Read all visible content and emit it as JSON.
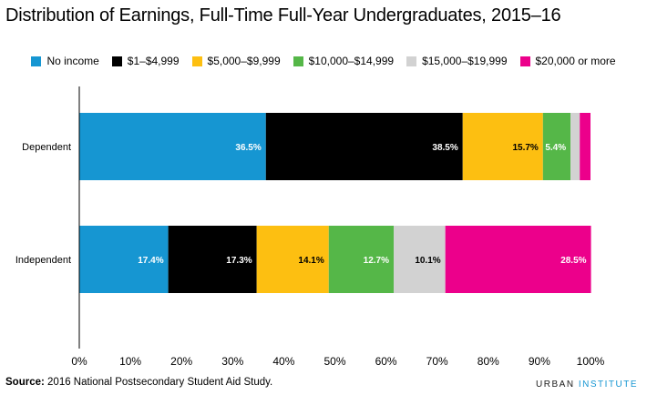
{
  "title": "Distribution of Earnings, Full-Time Full-Year Undergraduates, 2015–16",
  "source_label": "Source:",
  "source_text": "2016 National Postsecondary Student Aid Study.",
  "brand": {
    "word1": "URBAN",
    "word2": "INSTITUTE"
  },
  "chart_data": {
    "type": "bar",
    "orientation": "horizontal",
    "stacked": true,
    "title": "Distribution of Earnings, Full-Time Full-Year Undergraduates, 2015–16",
    "categories": [
      "Dependent",
      "Independent"
    ],
    "xlim": [
      0,
      100
    ],
    "x_ticks": [
      "0%",
      "10%",
      "20%",
      "30%",
      "40%",
      "50%",
      "60%",
      "70%",
      "80%",
      "90%",
      "100%"
    ],
    "legend_position": "top",
    "grid": false,
    "series": [
      {
        "name": "No income",
        "color": "#1696d2",
        "values": [
          36.5,
          17.4
        ],
        "labels": [
          "36.5%",
          "17.4%"
        ]
      },
      {
        "name": "$1–$4,999",
        "color": "#000000",
        "values": [
          38.5,
          17.3
        ],
        "labels": [
          "38.5%",
          "17.3%"
        ]
      },
      {
        "name": "$5,000–$9,999",
        "color": "#fdbf11",
        "values": [
          15.7,
          14.1
        ],
        "labels": [
          "15.7%",
          "14.1%"
        ]
      },
      {
        "name": "$10,000–$14,999",
        "color": "#55b748",
        "values": [
          5.4,
          12.7
        ],
        "labels": [
          "5.4%",
          "12.7%"
        ]
      },
      {
        "name": "$15,000–$19,999",
        "color": "#d2d2d2",
        "values": [
          1.8,
          10.1
        ],
        "labels": [
          "",
          "10.1%"
        ]
      },
      {
        "name": "$20,000 or more",
        "color": "#ec008b",
        "values": [
          2.1,
          28.5
        ],
        "labels": [
          "",
          "28.5%"
        ]
      }
    ]
  }
}
